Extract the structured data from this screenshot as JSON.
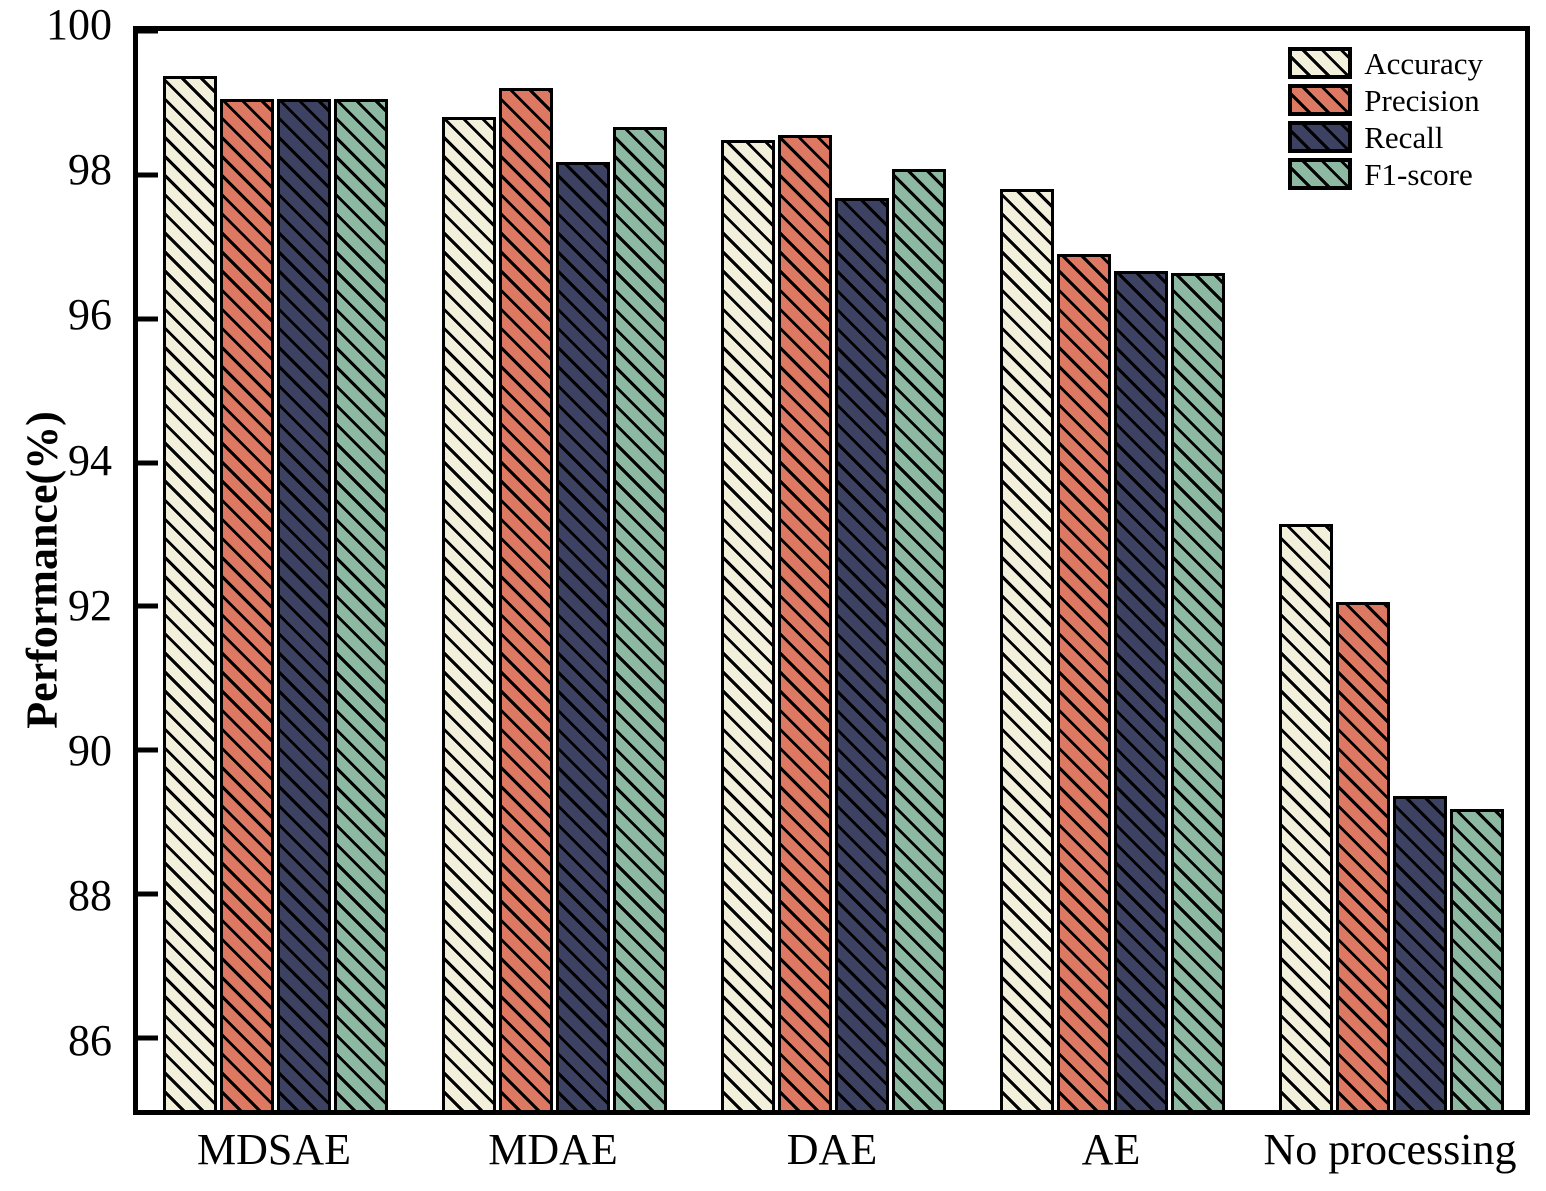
{
  "chart_data": {
    "type": "bar",
    "title": "",
    "xlabel": "",
    "ylabel": "Performance(%)",
    "ylim": [
      85,
      100
    ],
    "yticks": [
      86,
      88,
      90,
      92,
      94,
      96,
      98,
      100
    ],
    "grid": false,
    "legend_position": "top-right",
    "hatch_style": "backslash-diagonal",
    "categories": [
      "MDSAE",
      "MDAE",
      "DAE",
      "AE",
      "No processing"
    ],
    "series": [
      {
        "name": "Accuracy",
        "color": "#f2efdb",
        "values": [
          99.37,
          98.81,
          98.48,
          97.8,
          93.14
        ]
      },
      {
        "name": "Precision",
        "color": "#dd7963",
        "values": [
          99.05,
          99.21,
          98.56,
          96.9,
          92.06
        ]
      },
      {
        "name": "Recall",
        "color": "#3d4263",
        "values": [
          99.05,
          98.18,
          97.68,
          96.67,
          89.37
        ]
      },
      {
        "name": "F1-score",
        "color": "#8db8a2",
        "values": [
          99.06,
          98.67,
          98.08,
          96.63,
          89.18
        ]
      }
    ]
  },
  "colors": {
    "axis": "#000000",
    "background": "#ffffff",
    "hatch": "#000000"
  }
}
